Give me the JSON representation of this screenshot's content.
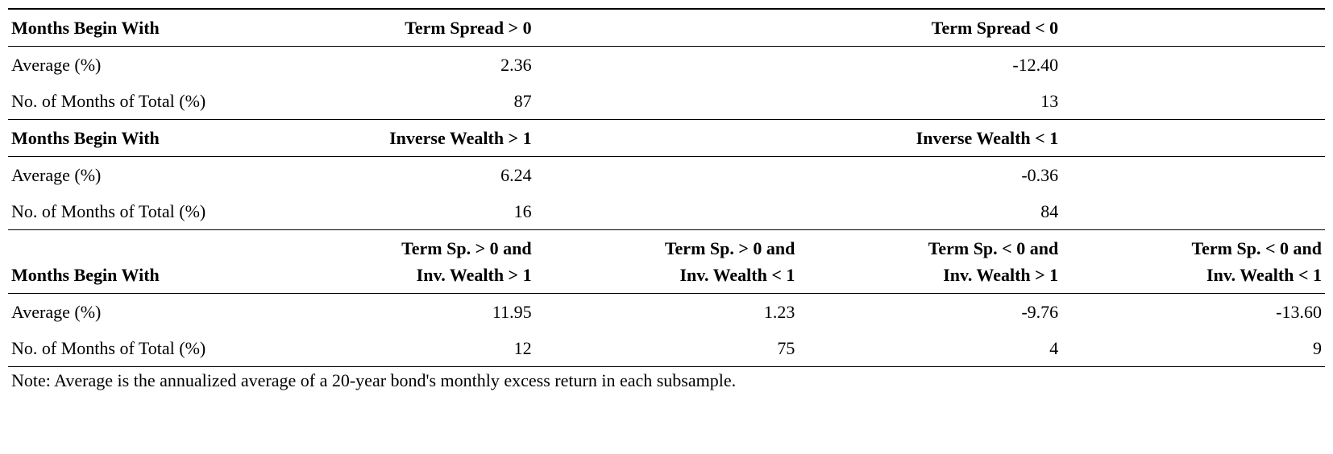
{
  "sections": [
    {
      "rowLabelHeader": "Months Begin With",
      "columns": [
        "Term Spread > 0",
        "",
        "Term Spread < 0",
        ""
      ],
      "colLines": 1,
      "rows": [
        {
          "label": "Average (%)",
          "values": [
            "2.36",
            "",
            "-12.40",
            ""
          ]
        },
        {
          "label": "No. of Months of Total (%)",
          "values": [
            "87",
            "",
            "13",
            ""
          ]
        }
      ]
    },
    {
      "rowLabelHeader": "Months Begin With",
      "columns": [
        "Inverse Wealth > 1",
        "",
        "Inverse Wealth < 1",
        ""
      ],
      "colLines": 1,
      "rows": [
        {
          "label": "Average (%)",
          "values": [
            "6.24",
            "",
            "-0.36",
            ""
          ]
        },
        {
          "label": "No. of Months of Total (%)",
          "values": [
            "16",
            "",
            "84",
            ""
          ]
        }
      ]
    },
    {
      "rowLabelHeader": "Months Begin With",
      "columns": [
        "Term Sp. > 0 and\nInv. Wealth > 1",
        "Term Sp. > 0 and\nInv. Wealth < 1",
        "Term Sp. < 0 and\nInv. Wealth > 1",
        "Term Sp. < 0 and\nInv. Wealth < 1"
      ],
      "colLines": 2,
      "rows": [
        {
          "label": "Average (%)",
          "values": [
            "11.95",
            "1.23",
            "-9.76",
            "-13.60"
          ]
        },
        {
          "label": "No. of Months of Total (%)",
          "values": [
            "12",
            "75",
            "4",
            "9"
          ]
        }
      ]
    }
  ],
  "note": "Note: Average is the annualized average of a 20-year bond's monthly excess return in each subsample."
}
